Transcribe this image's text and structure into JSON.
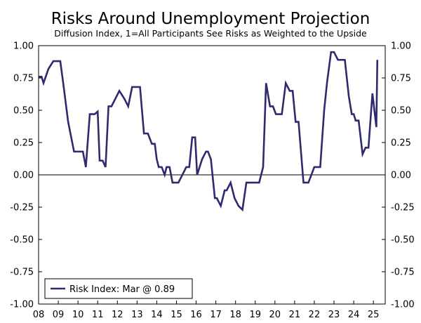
{
  "chart_data": {
    "type": "line",
    "title": "Risks Around Unemployment Projection",
    "subtitle": "Diffusion Index, 1=All Participants See Risks as Weighted to the Upside",
    "ylim": [
      -1.0,
      1.0
    ],
    "xlim": [
      2008,
      2025.6
    ],
    "y_ticks": [
      "1.00",
      "0.75",
      "0.50",
      "0.25",
      "0.00",
      "-0.25",
      "-0.50",
      "-0.75",
      "-1.00"
    ],
    "y_tick_values": [
      1.0,
      0.75,
      0.5,
      0.25,
      0.0,
      -0.25,
      -0.5,
      -0.75,
      -1.0
    ],
    "x_ticks": [
      "08",
      "09",
      "10",
      "11",
      "12",
      "13",
      "14",
      "15",
      "16",
      "17",
      "18",
      "19",
      "20",
      "21",
      "22",
      "23",
      "24",
      "25"
    ],
    "x_tick_values": [
      2008,
      2009,
      2010,
      2011,
      2012,
      2013,
      2014,
      2015,
      2016,
      2017,
      2018,
      2019,
      2020,
      2021,
      2022,
      2023,
      2024,
      2025
    ],
    "grid": false,
    "zero_line": true,
    "legend": {
      "placement": "bottom-left",
      "label": "Risk Index: Mar @ 0.89"
    },
    "color": "#2e2a6e",
    "series": [
      {
        "name": "Risk Index: Mar @ 0.89",
        "x": [
          2008.0,
          2008.15,
          2008.25,
          2008.5,
          2008.75,
          2009.1,
          2009.25,
          2009.5,
          2009.8,
          2010.25,
          2010.4,
          2010.6,
          2010.85,
          2011.0,
          2011.1,
          2011.25,
          2011.4,
          2011.55,
          2011.7,
          2012.1,
          2012.35,
          2012.55,
          2012.75,
          2012.95,
          2013.05,
          2013.15,
          2013.35,
          2013.55,
          2013.75,
          2013.9,
          2014.0,
          2014.1,
          2014.25,
          2014.4,
          2014.5,
          2014.65,
          2014.8,
          2014.95,
          2015.1,
          2015.3,
          2015.5,
          2015.65,
          2015.8,
          2015.95,
          2016.05,
          2016.3,
          2016.5,
          2016.6,
          2016.75,
          2016.95,
          2017.05,
          2017.25,
          2017.45,
          2017.55,
          2017.75,
          2017.95,
          2018.15,
          2018.35,
          2018.55,
          2018.75,
          2018.95,
          2019.2,
          2019.4,
          2019.55,
          2019.75,
          2019.9,
          2020.05,
          2020.35,
          2020.55,
          2020.75,
          2020.9,
          2021.05,
          2021.2,
          2021.45,
          2021.7,
          2022.0,
          2022.15,
          2022.3,
          2022.5,
          2022.65,
          2022.85,
          2023.0,
          2023.2,
          2023.4,
          2023.55,
          2023.75,
          2023.9,
          2024.0,
          2024.1,
          2024.25,
          2024.45,
          2024.6,
          2024.75,
          2024.95,
          2025.15,
          2025.2
        ],
        "values": [
          0.76,
          0.76,
          0.71,
          0.82,
          0.88,
          0.88,
          0.71,
          0.41,
          0.18,
          0.18,
          0.06,
          0.47,
          0.47,
          0.49,
          0.11,
          0.11,
          0.06,
          0.53,
          0.53,
          0.65,
          0.59,
          0.53,
          0.68,
          0.68,
          0.68,
          0.68,
          0.32,
          0.32,
          0.24,
          0.24,
          0.12,
          0.06,
          0.06,
          0.0,
          0.06,
          0.06,
          -0.06,
          -0.06,
          -0.06,
          0.0,
          0.06,
          0.06,
          0.29,
          0.29,
          0.0,
          0.12,
          0.18,
          0.18,
          0.12,
          -0.18,
          -0.18,
          -0.24,
          -0.12,
          -0.12,
          -0.06,
          -0.18,
          -0.24,
          -0.27,
          -0.06,
          -0.06,
          -0.06,
          -0.06,
          0.06,
          0.71,
          0.53,
          0.53,
          0.47,
          0.47,
          0.71,
          0.65,
          0.65,
          0.41,
          0.41,
          -0.06,
          -0.06,
          0.06,
          0.06,
          0.06,
          0.5,
          0.72,
          0.95,
          0.95,
          0.89,
          0.89,
          0.89,
          0.61,
          0.47,
          0.47,
          0.42,
          0.42,
          0.16,
          0.21,
          0.21,
          0.63,
          0.37,
          0.89
        ]
      }
    ]
  }
}
